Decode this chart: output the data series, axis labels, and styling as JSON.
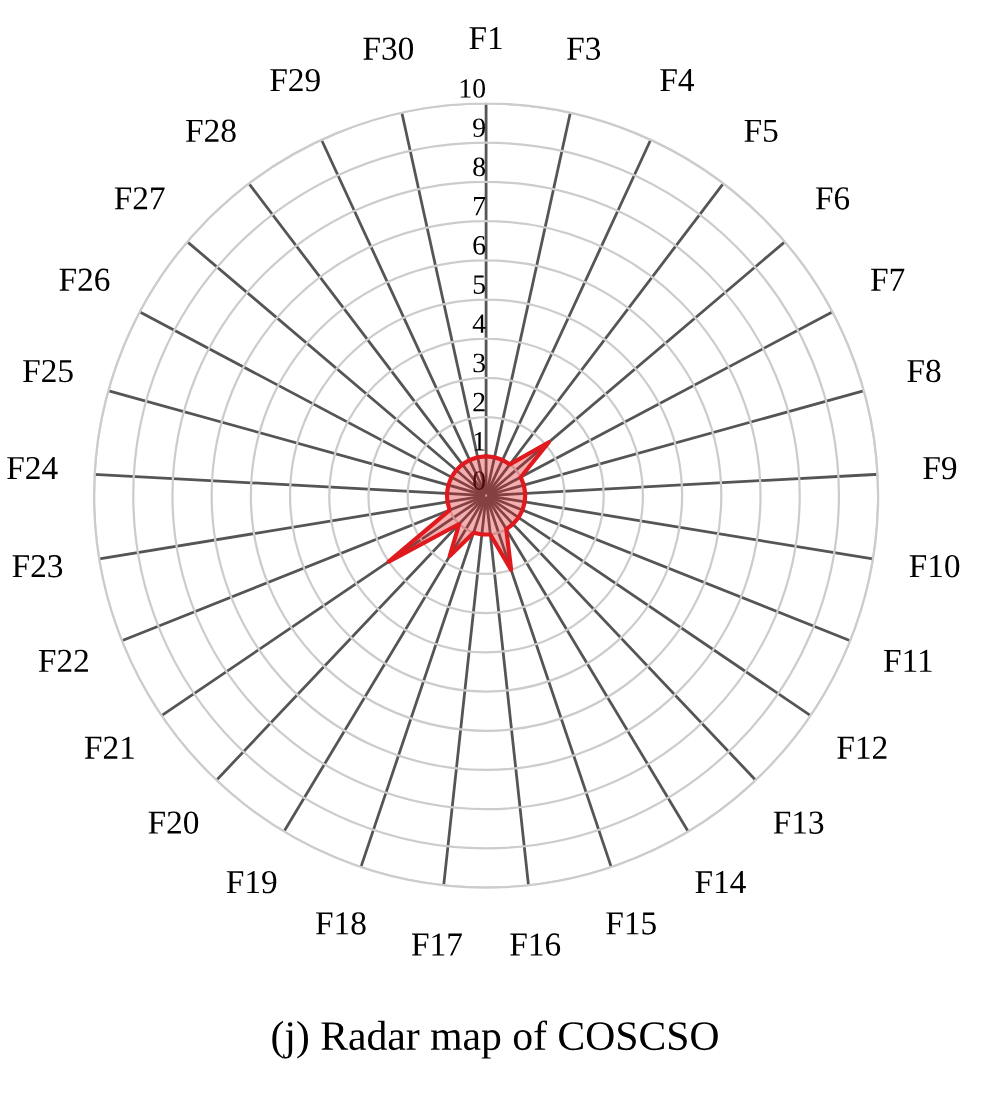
{
  "chart_data": {
    "type": "radar",
    "title": "(j) Radar map of COSCSO",
    "categories": [
      "F1",
      "F3",
      "F4",
      "F5",
      "F6",
      "F7",
      "F8",
      "F9",
      "F10",
      "F11",
      "F12",
      "F13",
      "F14",
      "F15",
      "F16",
      "F17",
      "F18",
      "F19",
      "F20",
      "F21",
      "F22",
      "F23",
      "F24",
      "F25",
      "F26",
      "F27",
      "F28",
      "F29",
      "F30"
    ],
    "series": [
      {
        "color": "#e0191e",
        "values": [
          1,
          1,
          1,
          1,
          2.1,
          1,
          1,
          1,
          1,
          1,
          1,
          1,
          1,
          2,
          1,
          1,
          1,
          1.8,
          1,
          3,
          1,
          1,
          1,
          1,
          1,
          1,
          1,
          1,
          1
        ]
      }
    ],
    "ylim": [
      0,
      10
    ],
    "yticks": [
      0,
      1,
      2,
      3,
      4,
      5,
      6,
      7,
      8,
      9,
      10
    ],
    "grid": true
  }
}
